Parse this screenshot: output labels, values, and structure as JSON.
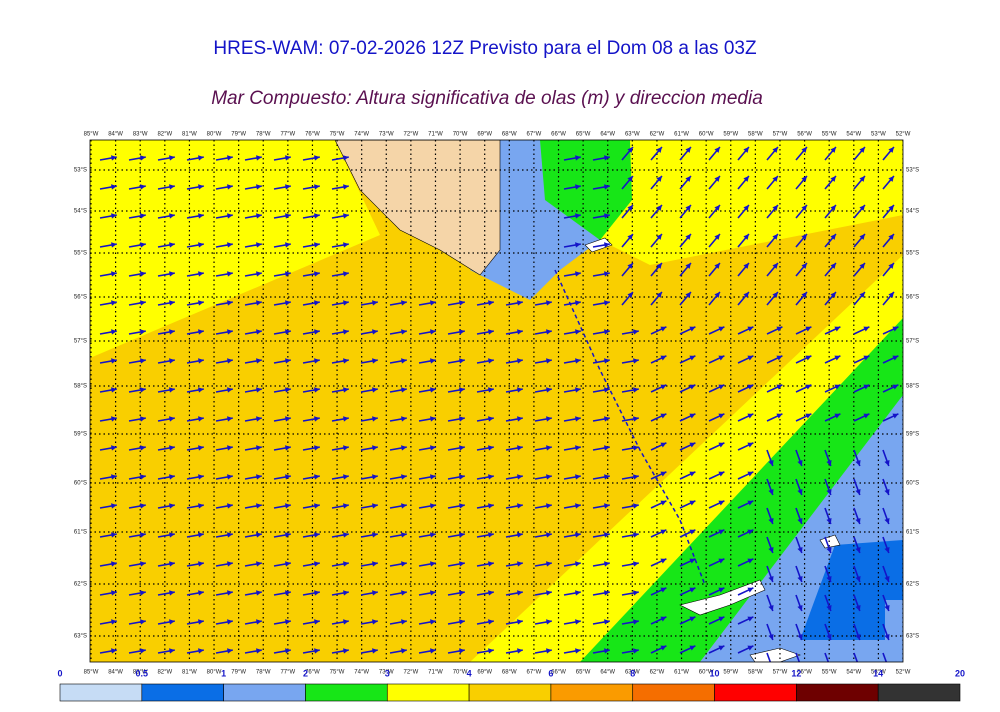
{
  "header": {
    "title": "HRES-WAM: 07-02-2026 12Z Previsto para el Dom 08 a las 03Z",
    "subtitle": "Mar Compuesto: Altura significativa de olas (m) y direccion media"
  },
  "map": {
    "longitudes": [
      "85°W",
      "84°W",
      "83°W",
      "82°W",
      "81°W",
      "80°W",
      "79°W",
      "78°W",
      "77°W",
      "76°W",
      "75°W",
      "74°W",
      "73°W",
      "72°W",
      "71°W",
      "70°W",
      "69°W",
      "68°W",
      "67°W",
      "66°W",
      "65°W",
      "64°W",
      "63°W",
      "62°W",
      "61°W",
      "60°W",
      "59°W",
      "58°W",
      "57°W",
      "56°W",
      "55°W",
      "54°W",
      "53°W",
      "52°W"
    ],
    "latitudes": [
      "53°S",
      "54°S",
      "55°S",
      "56°S",
      "57°S",
      "58°S",
      "59°S",
      "60°S",
      "61°S",
      "62°S",
      "63°S"
    ]
  },
  "colorbar": {
    "ticks": [
      0,
      0.5,
      1,
      2,
      3,
      4,
      6,
      8,
      10,
      12,
      14,
      20
    ],
    "colors": [
      "#c6dcf5",
      "#0a6ee6",
      "#78a6f0",
      "#17e617",
      "#ffff00",
      "#f9cf00",
      "#fa9b00",
      "#f56e00",
      "#ff0000",
      "#6e0000",
      "#333333"
    ]
  }
}
